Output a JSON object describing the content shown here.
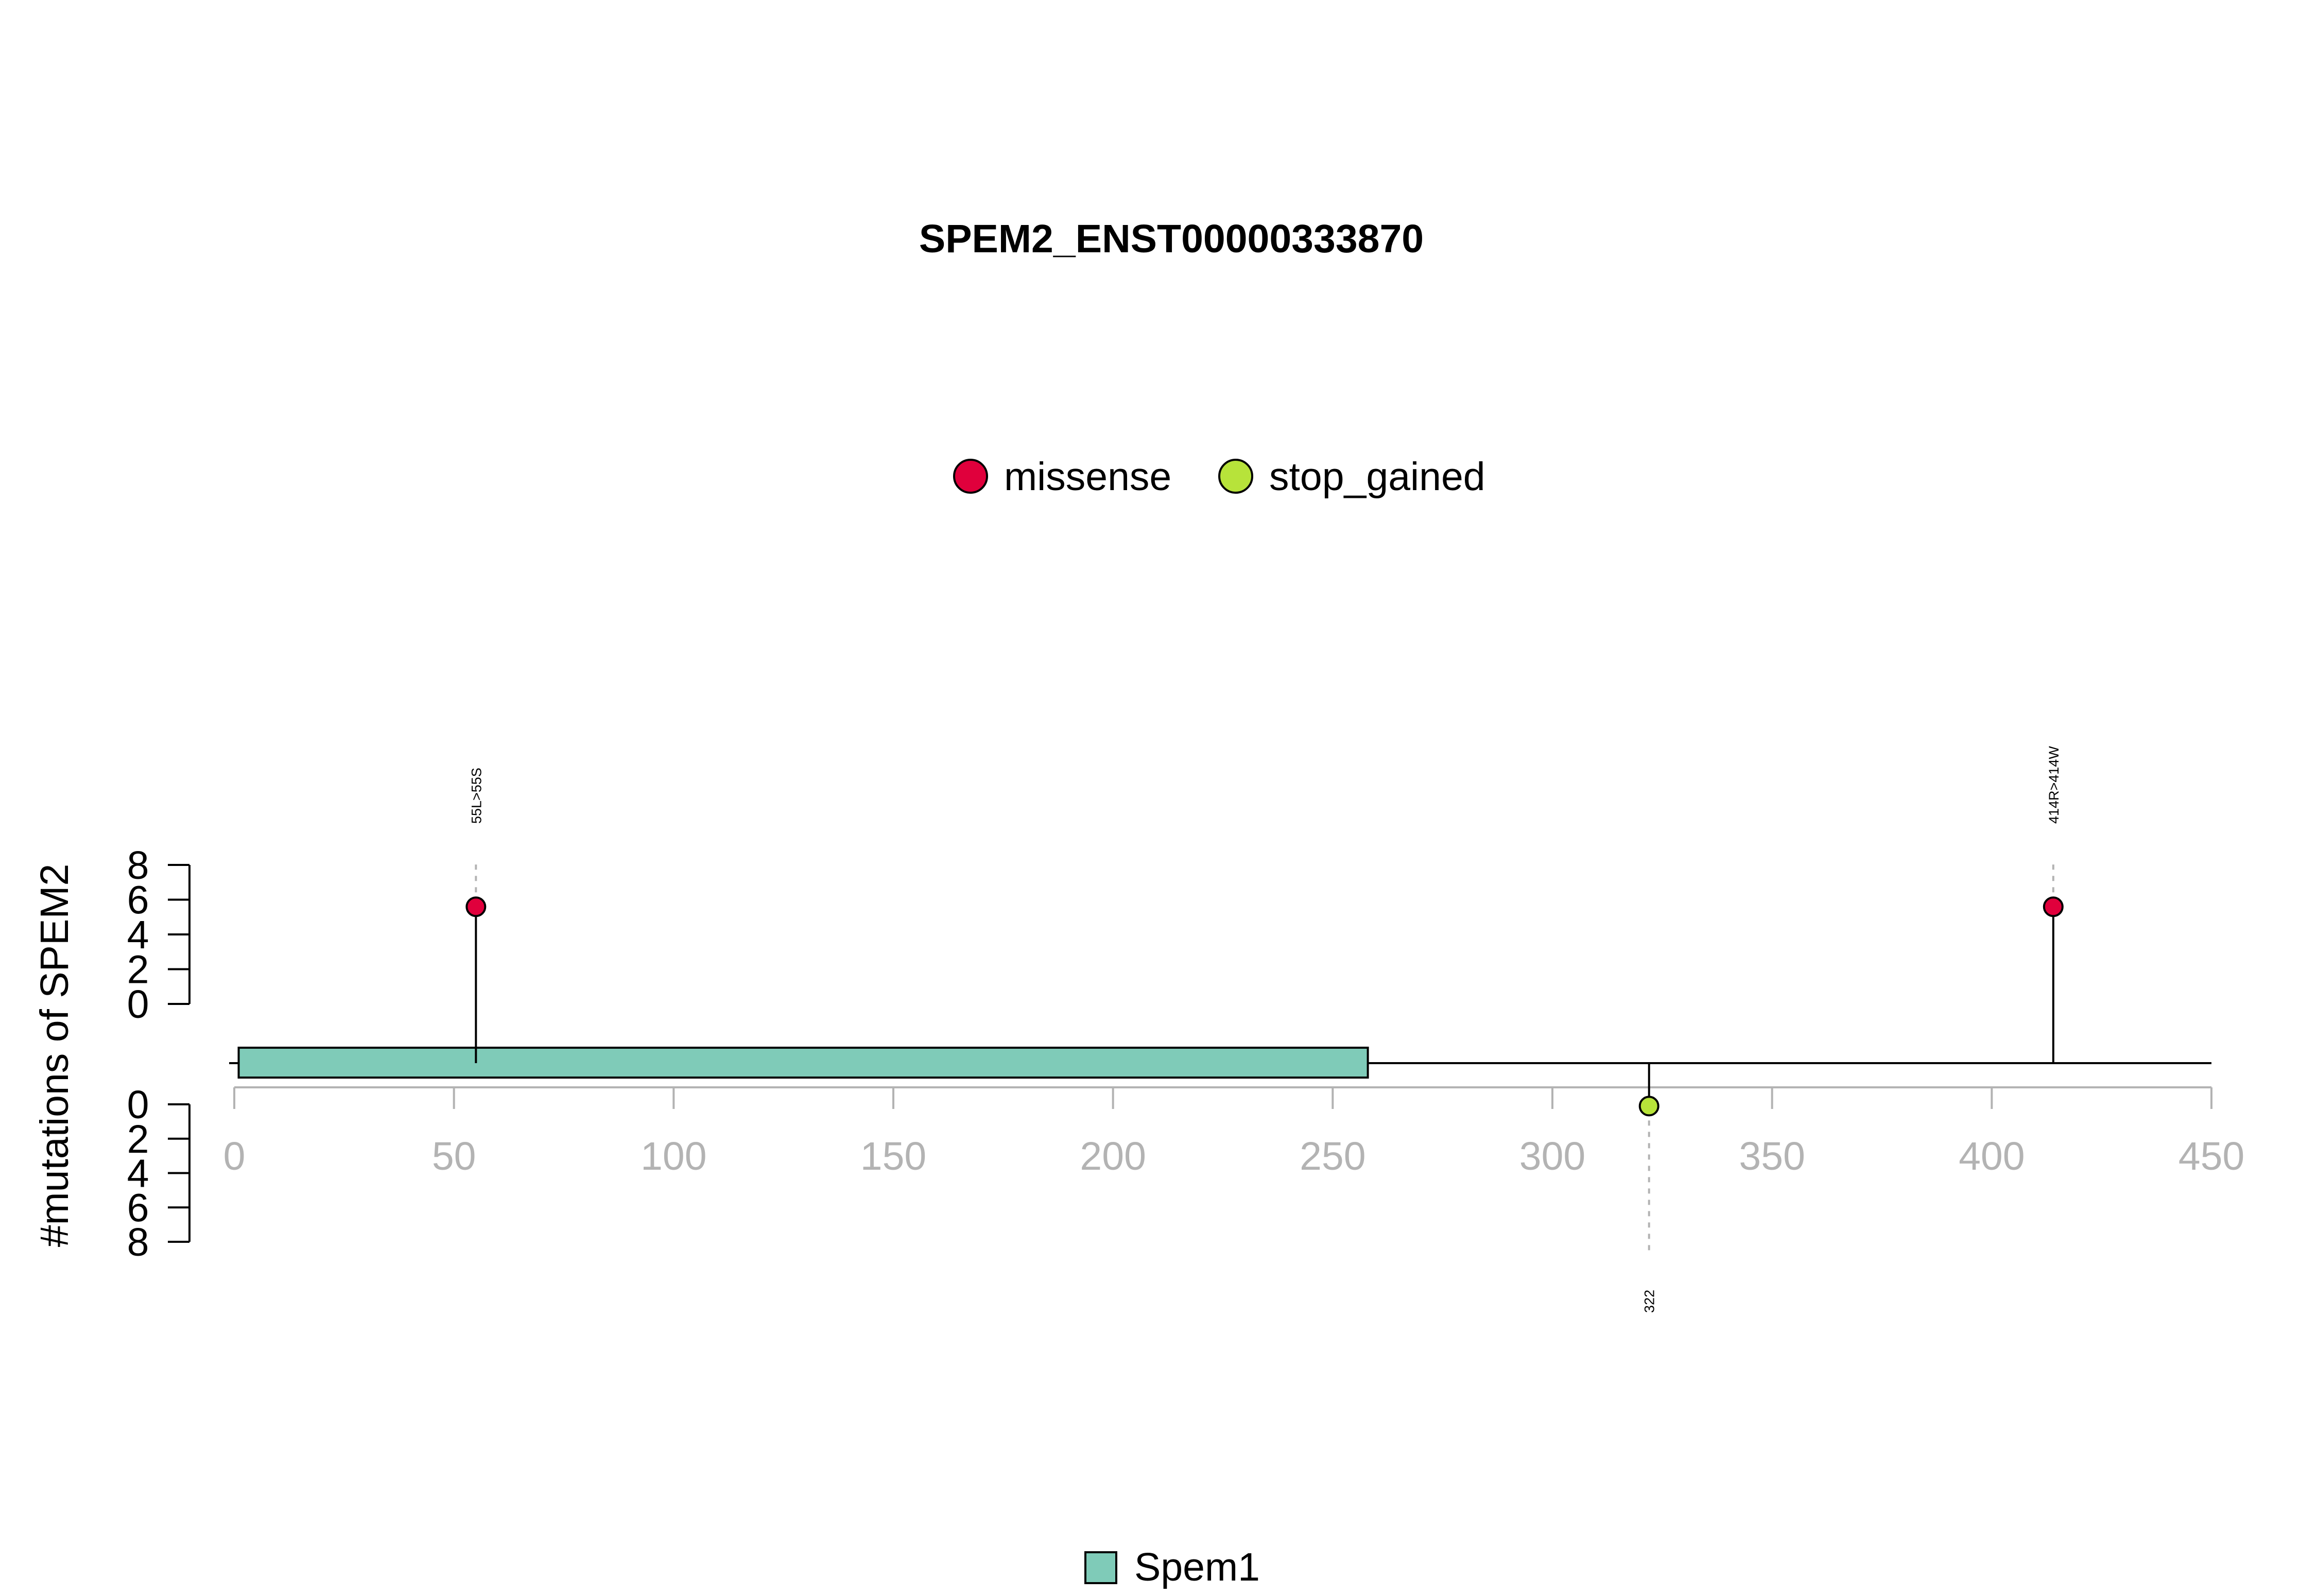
{
  "chart_data": {
    "type": "lollipop",
    "title": "SPEM2_ENST00000333870",
    "ylabel": "#mutations of SPEM2",
    "xlim": [
      0,
      450
    ],
    "x_ticks": [
      "0",
      "50",
      "100",
      "150",
      "200",
      "250",
      "300",
      "350",
      "400",
      "450"
    ],
    "y_ticks_top": [
      "0",
      "2",
      "4",
      "6",
      "8"
    ],
    "y_ticks_bottom": [
      "0",
      "2",
      "4",
      "6",
      "8"
    ],
    "ylim": [
      0,
      8
    ],
    "legend_top": [
      {
        "label": "missense",
        "color": "#e0003c"
      },
      {
        "label": "stop_gained",
        "color": "#b7e33a"
      }
    ],
    "legend_bottom": [
      {
        "label": "Spem1",
        "color": "#7fcbb8"
      }
    ],
    "domains": [
      {
        "name": "Spem1",
        "start": 1,
        "end": 258,
        "color": "#7fcbb8"
      }
    ],
    "protein_length": 450,
    "mutations": [
      {
        "position": 55,
        "count": 1,
        "type": "missense",
        "label": "55L>55S",
        "side": "top"
      },
      {
        "position": 414,
        "count": 1,
        "type": "missense",
        "label": "414R>414W",
        "side": "top"
      },
      {
        "position": 322,
        "count": 1,
        "type": "stop_gained",
        "label": "322",
        "side": "bottom"
      }
    ]
  }
}
